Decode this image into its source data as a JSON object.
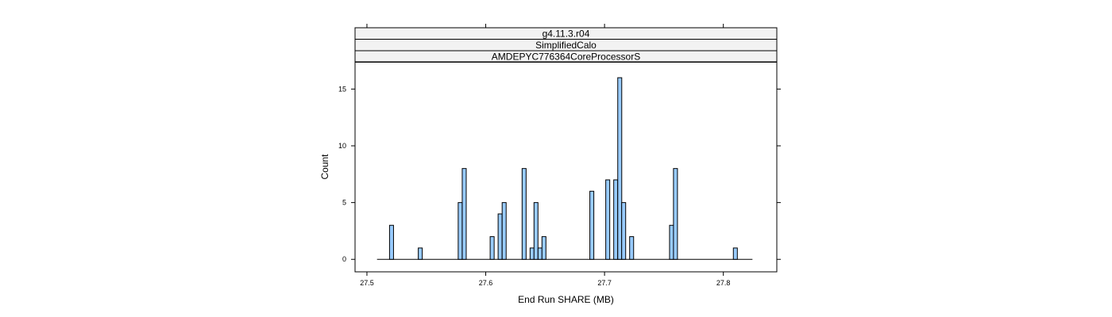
{
  "chart_data": {
    "type": "bar",
    "title": "",
    "xlabel": "End Run SHARE (MB)",
    "ylabel": "Count",
    "strips": [
      "g4.11.3.r04",
      "SimplifiedCalo",
      "AMDEPYC776364CoreProcessorS"
    ],
    "xlim": [
      27.49,
      27.845
    ],
    "ylim": [
      -1.1,
      17.4
    ],
    "x_ticks": [
      27.5,
      27.6,
      27.7,
      27.8
    ],
    "x_tick_labels": [
      "27.5",
      "27.6",
      "27.7",
      "27.8"
    ],
    "y_ticks": [
      0,
      5,
      10,
      15
    ],
    "y_tick_labels": [
      "0",
      "5",
      "10",
      "15"
    ],
    "bin_width": 0.00336,
    "baseline_range": [
      27.5085,
      27.8245
    ],
    "bins": [
      {
        "x": 27.5207,
        "count": 3
      },
      {
        "x": 27.5449,
        "count": 1
      },
      {
        "x": 27.5785,
        "count": 5
      },
      {
        "x": 27.5819,
        "count": 8
      },
      {
        "x": 27.6054,
        "count": 2
      },
      {
        "x": 27.6121,
        "count": 4
      },
      {
        "x": 27.6155,
        "count": 5
      },
      {
        "x": 27.6323,
        "count": 8
      },
      {
        "x": 27.639,
        "count": 1
      },
      {
        "x": 27.6423,
        "count": 5
      },
      {
        "x": 27.6457,
        "count": 1
      },
      {
        "x": 27.649,
        "count": 2
      },
      {
        "x": 27.6893,
        "count": 6
      },
      {
        "x": 27.7027,
        "count": 7
      },
      {
        "x": 27.7094,
        "count": 7
      },
      {
        "x": 27.7128,
        "count": 16
      },
      {
        "x": 27.7161,
        "count": 5
      },
      {
        "x": 27.7228,
        "count": 2
      },
      {
        "x": 27.7564,
        "count": 3
      },
      {
        "x": 27.7597,
        "count": 8
      },
      {
        "x": 27.8101,
        "count": 1
      }
    ],
    "bar_fill": "#99ccff",
    "bar_stroke": "#000000",
    "strip_fill": "#f2f2f2",
    "grid": false,
    "legend": "none"
  }
}
